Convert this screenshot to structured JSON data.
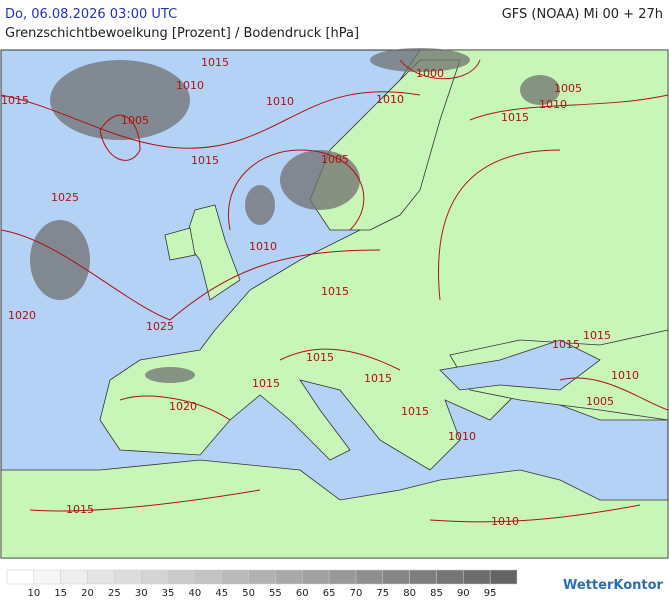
{
  "header": {
    "datetime": "Do, 06.08.2026 03:00 UTC",
    "model": "GFS (NOAA) Mi 00 + 27h",
    "subtitle": "Grenzschichtbewoelkung [Prozent] / Bodendruck [hPa]"
  },
  "isobar_labels": [
    "1015",
    "1010",
    "1000",
    "1005",
    "1015",
    "1010",
    "1010",
    "1010",
    "1005",
    "1015",
    "1015",
    "1005",
    "1025",
    "1010",
    "1015",
    "1025",
    "1020",
    "1015",
    "1015",
    "1015",
    "1015",
    "1015",
    "1010",
    "1020",
    "1005",
    "1015",
    "1010",
    "1015",
    "1010"
  ],
  "legend": {
    "labels": [
      10,
      15,
      20,
      25,
      30,
      35,
      40,
      45,
      50,
      55,
      60,
      65,
      70,
      75,
      80,
      85,
      90,
      95
    ]
  },
  "logo": "WetterKontor"
}
